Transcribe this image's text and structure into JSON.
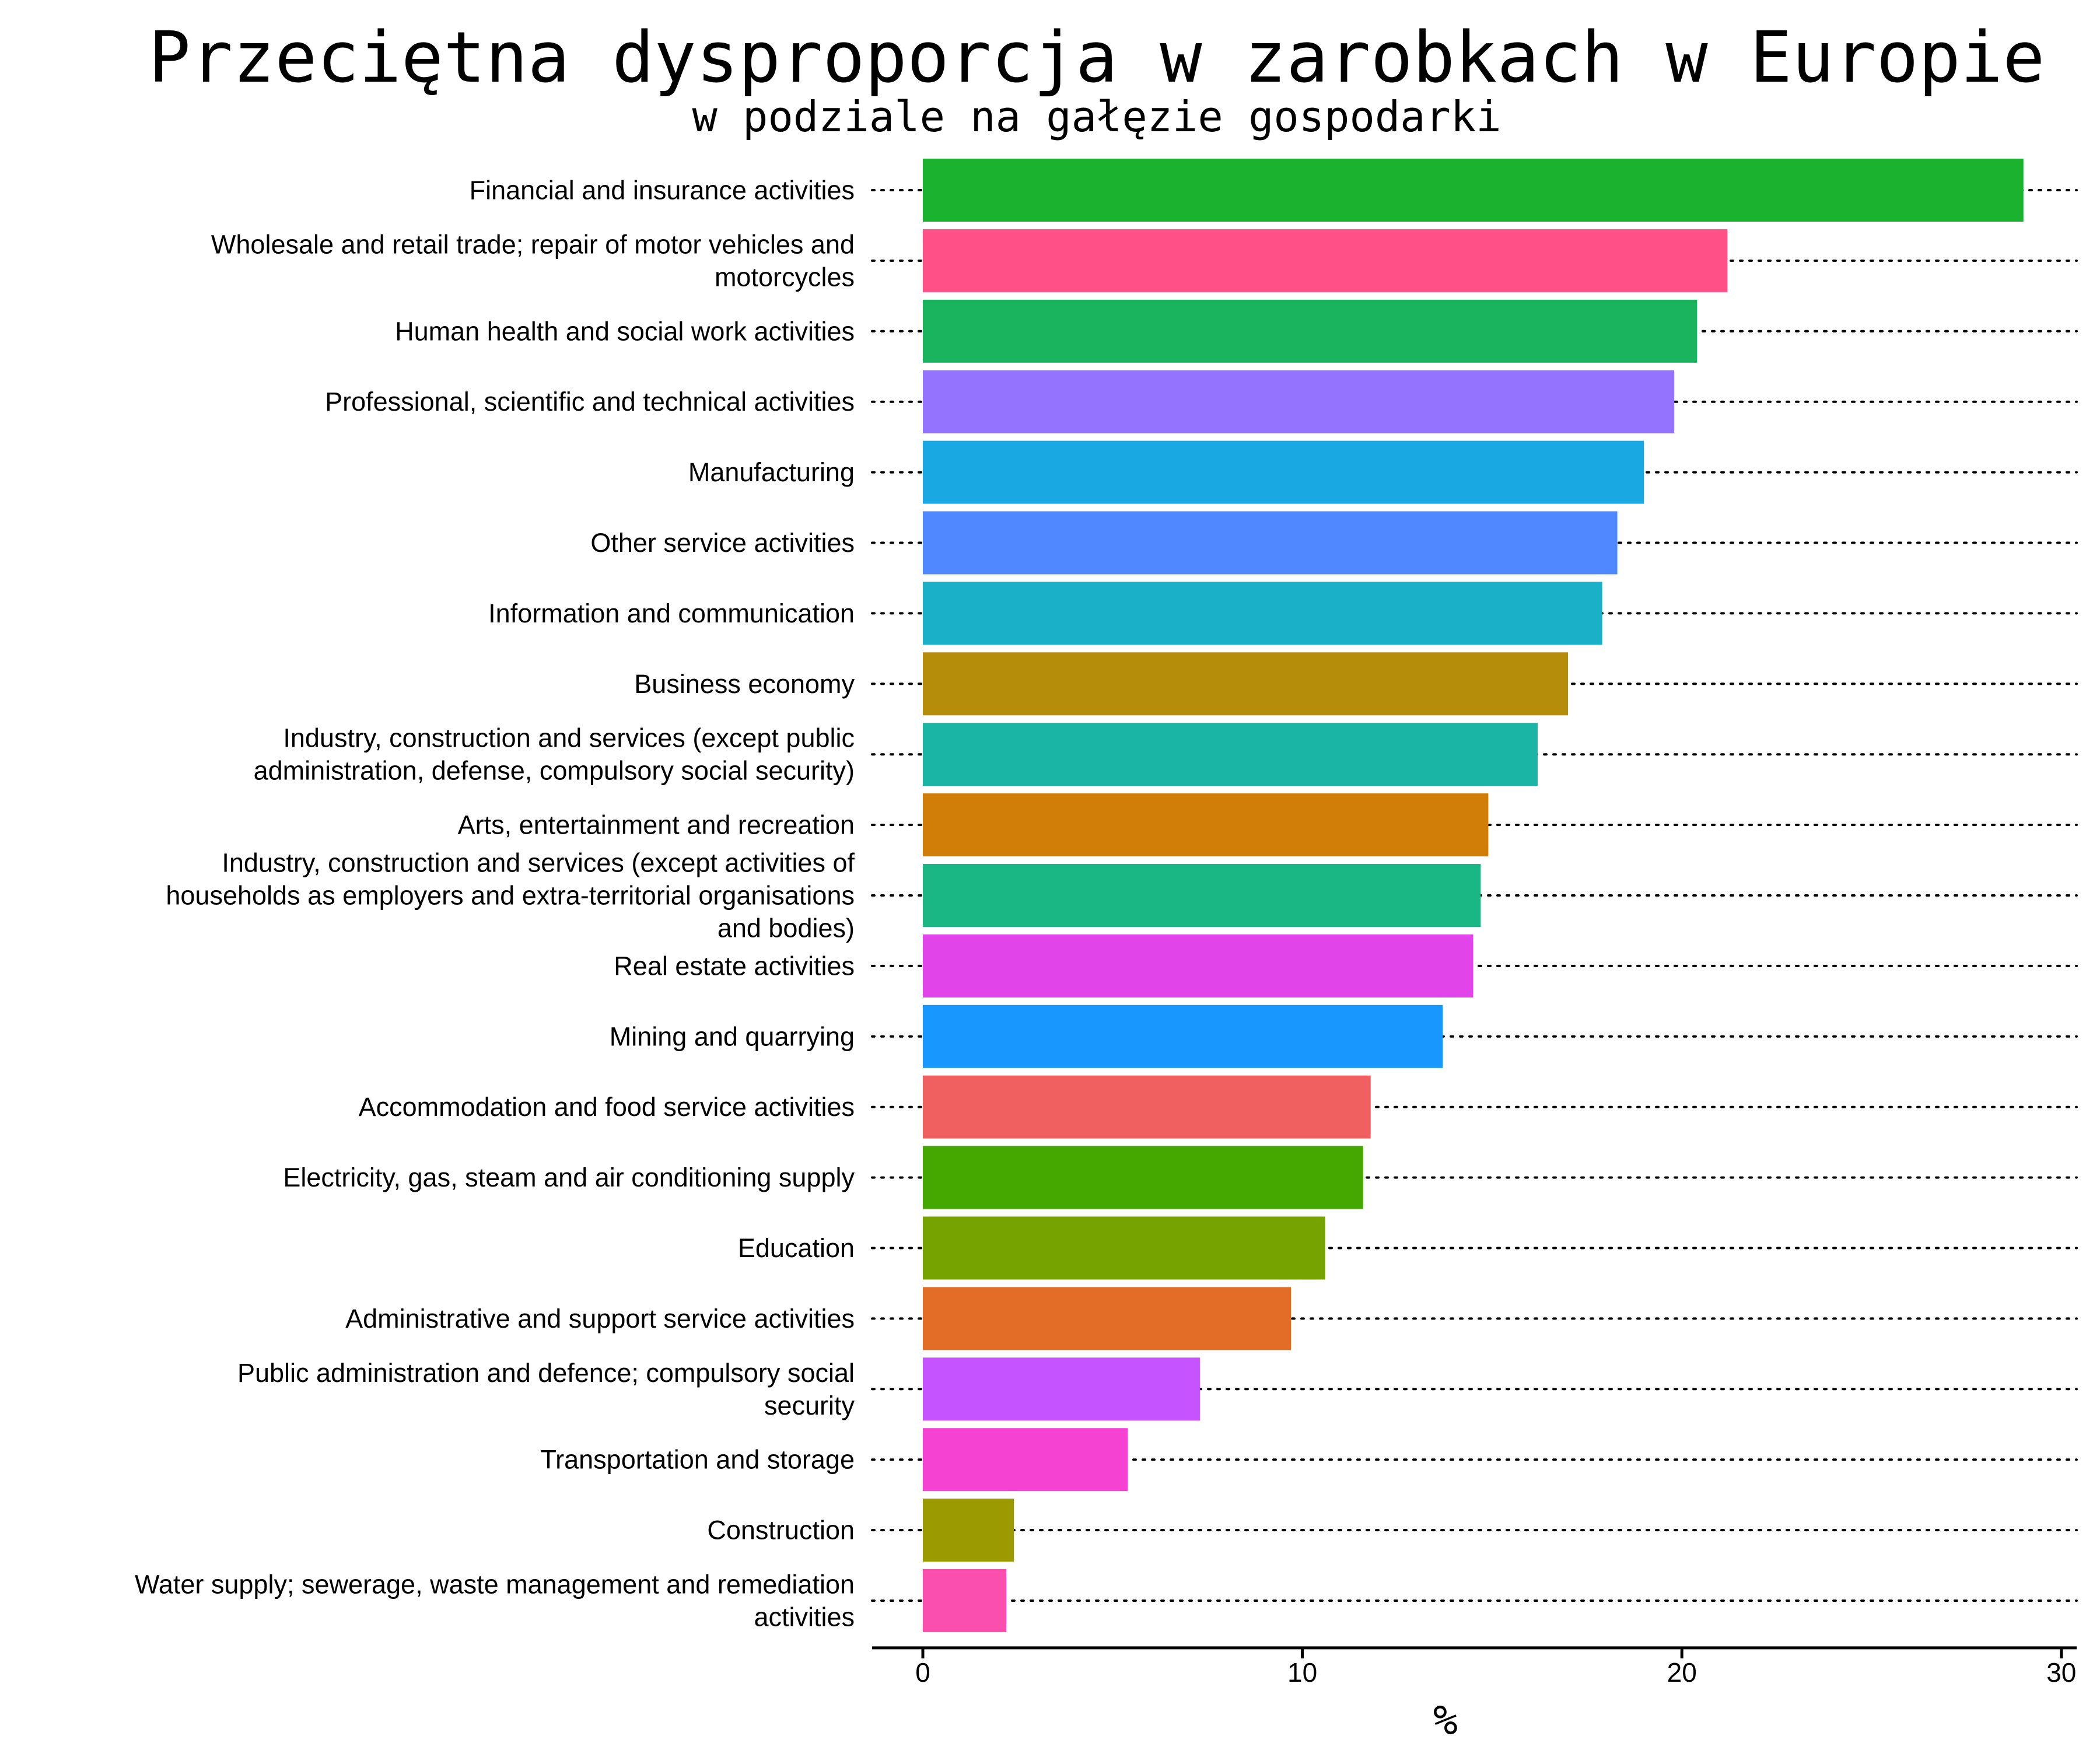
{
  "chart_data": {
    "type": "bar",
    "orientation": "horizontal",
    "title": "Przeciętna dysproporcja w zarobkach w Europie",
    "subtitle": "w podziale na gałęzie gospodarki",
    "xlabel": "%",
    "ylabel": "",
    "xlim": [
      0,
      30
    ],
    "xticks": [
      0,
      10,
      20,
      30
    ],
    "grid": "dotted horizontal guide lines per category",
    "legend": "none",
    "categories": [
      "Financial and insurance activities",
      "Wholesale and retail trade; repair of motor vehicles and motorcycles",
      "Human health and social work activities",
      "Professional, scientific and technical activities",
      "Manufacturing",
      "Other service activities",
      "Information and communication",
      "Business economy",
      "Industry, construction and services (except public administration, defense, compulsory social security)",
      "Arts, entertainment and recreation",
      "Industry, construction and services (except activities of households as employers and extra-territorial organisations and bodies)",
      "Real estate activities",
      "Mining and quarrying",
      "Accommodation and food service activities",
      "Electricity, gas, steam and air conditioning supply",
      "Education",
      "Administrative and support service activities",
      "Public administration and defence; compulsory social security",
      "Transportation and storage",
      "Construction",
      "Water supply; sewerage, waste management and remediation activities"
    ],
    "label_lines": [
      [
        "Financial and insurance activities"
      ],
      [
        "Wholesale and retail trade; repair of motor vehicles and",
        "motorcycles"
      ],
      [
        "Human health and social work activities"
      ],
      [
        "Professional, scientific and technical activities"
      ],
      [
        "Manufacturing"
      ],
      [
        "Other service activities"
      ],
      [
        "Information and communication"
      ],
      [
        "Business economy"
      ],
      [
        "Industry, construction and services (except public",
        "administration, defense, compulsory social security)"
      ],
      [
        "Arts, entertainment and recreation"
      ],
      [
        "Industry, construction and services (except activities of",
        "households as employers and extra-territorial organisations",
        "and bodies)"
      ],
      [
        "Real estate activities"
      ],
      [
        "Mining and quarrying"
      ],
      [
        "Accommodation and food service activities"
      ],
      [
        "Electricity, gas, steam and air conditioning supply"
      ],
      [
        "Education"
      ],
      [
        "Administrative and support service activities"
      ],
      [
        "Public administration and defence; compulsory social",
        "security"
      ],
      [
        "Transportation and storage"
      ],
      [
        "Construction"
      ],
      [
        "Water supply; sewerage, waste management and remediation",
        "activities"
      ]
    ],
    "values": [
      29.0,
      21.2,
      20.4,
      19.8,
      19.0,
      18.3,
      17.9,
      17.0,
      16.2,
      14.9,
      14.7,
      14.5,
      13.7,
      11.8,
      11.6,
      10.6,
      9.7,
      7.3,
      5.4,
      2.4,
      2.2
    ],
    "colors": [
      "#1ab22e",
      "#ff5188",
      "#1ab35e",
      "#9474ff",
      "#1aa8e2",
      "#5088ff",
      "#1ab0c8",
      "#b58d0a",
      "#1ab5a4",
      "#d07e08",
      "#1ab784",
      "#e145ea",
      "#1898ff",
      "#f06060",
      "#44a800",
      "#76a300",
      "#e36d27",
      "#c553ff",
      "#f542d2",
      "#9b9a00",
      "#fb4fb0"
    ]
  }
}
